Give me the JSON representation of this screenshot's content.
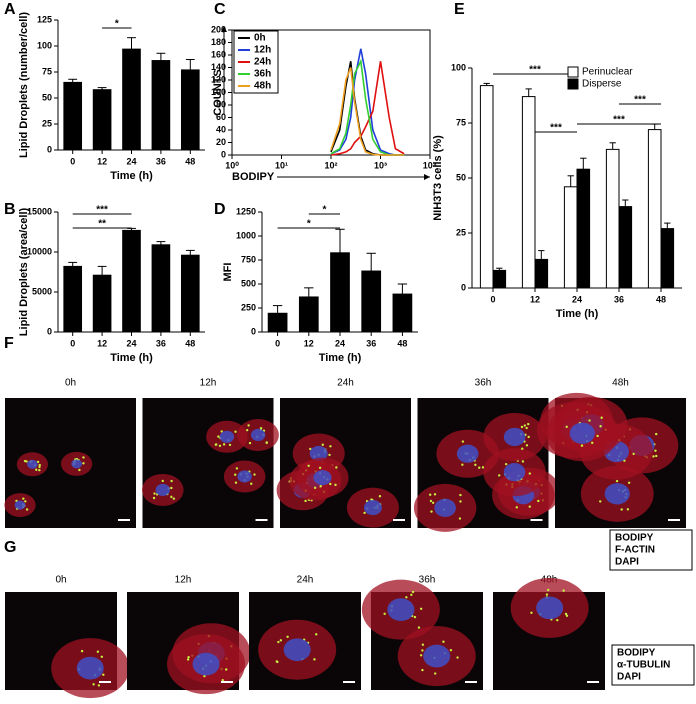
{
  "chart_data": [
    {
      "type": "bar",
      "panel": "A",
      "ylabel": "Lipid Droplets (number/cell)",
      "xlabel": "Time (h)",
      "categories": [
        "0",
        "12",
        "24",
        "36",
        "48"
      ],
      "values": [
        65,
        58,
        97,
        86,
        77
      ],
      "errors": [
        3,
        2,
        11,
        7,
        10
      ],
      "color": "#000000",
      "ylim": [
        0,
        125
      ],
      "yticks": [
        0,
        25,
        50,
        75,
        100,
        125
      ],
      "annotations": [
        "*"
      ]
    },
    {
      "type": "bar",
      "panel": "B",
      "ylabel": "Lipid Droplets (area/cell)",
      "xlabel": "Time (h)",
      "categories": [
        "0",
        "12",
        "24",
        "36",
        "48"
      ],
      "values": [
        8200,
        7100,
        12700,
        10900,
        9600
      ],
      "errors": [
        500,
        1100,
        250,
        400,
        600
      ],
      "color": "#000000",
      "ylim": [
        0,
        15000
      ],
      "yticks": [
        0,
        5000,
        10000,
        15000
      ],
      "annotations": [
        "***",
        "**"
      ]
    },
    {
      "type": "line",
      "panel": "C",
      "ylabel": "COUNTS",
      "xlabel": "BODIPY",
      "log_x": true,
      "x": [
        100,
        150,
        200,
        250,
        300,
        400,
        500,
        700,
        1000,
        1500,
        2000,
        3000
      ],
      "series": [
        {
          "name": "0h",
          "color": "#000000",
          "values": [
            5,
            40,
            110,
            150,
            90,
            30,
            8,
            2,
            0,
            0,
            0,
            0
          ]
        },
        {
          "name": "12h",
          "color": "#1f3fd8",
          "values": [
            2,
            8,
            25,
            60,
            120,
            170,
            130,
            40,
            8,
            2,
            0,
            0
          ]
        },
        {
          "name": "24h",
          "color": "#e01010",
          "values": [
            0,
            2,
            5,
            10,
            20,
            30,
            45,
            70,
            150,
            60,
            10,
            2
          ]
        },
        {
          "name": "36h",
          "color": "#30d030",
          "values": [
            2,
            10,
            35,
            80,
            130,
            150,
            90,
            25,
            5,
            0,
            0,
            0
          ]
        },
        {
          "name": "48h",
          "color": "#f0a020",
          "values": [
            8,
            50,
            120,
            140,
            85,
            25,
            5,
            1,
            0,
            0,
            0,
            0
          ]
        }
      ],
      "xlim": [
        1,
        10000
      ],
      "xticks": [
        {
          "value": 1,
          "label": "10⁰"
        },
        {
          "value": 10,
          "label": "10¹"
        },
        {
          "value": 100,
          "label": "10²"
        },
        {
          "value": 1000,
          "label": "10³"
        },
        {
          "value": 10000,
          "label": "10⁴"
        }
      ],
      "ylim": [
        0,
        200
      ],
      "yticks": [
        0,
        20,
        40,
        60,
        80,
        100,
        120,
        140,
        160,
        180,
        200
      ]
    },
    {
      "type": "bar",
      "panel": "D",
      "ylabel": "MFI",
      "xlabel": "Time (h)",
      "categories": [
        "0",
        "12",
        "24",
        "36",
        "48"
      ],
      "values": [
        195,
        365,
        825,
        635,
        395
      ],
      "errors": [
        80,
        95,
        245,
        185,
        105
      ],
      "color": "#000000",
      "ylim": [
        0,
        1250
      ],
      "yticks": [
        0,
        250,
        500,
        750,
        1000,
        1250
      ],
      "annotations": [
        "*",
        "*"
      ]
    },
    {
      "type": "bar",
      "panel": "E",
      "ylabel": "NIH3T3 cells (%)",
      "xlabel": "Time (h)",
      "categories": [
        "0",
        "12",
        "24",
        "36",
        "48"
      ],
      "series": [
        {
          "name": "Perinuclear",
          "color": "#ffffff",
          "values": [
            92,
            87,
            46,
            63,
            72
          ],
          "errors": [
            1,
            3.5,
            5,
            3,
            2.5
          ]
        },
        {
          "name": "Disperse",
          "color": "#000000",
          "values": [
            8,
            13,
            54,
            37,
            27
          ],
          "errors": [
            1,
            4,
            5,
            3,
            2.5
          ]
        }
      ],
      "ylim": [
        0,
        100
      ],
      "yticks": [
        0,
        25,
        50,
        75,
        100
      ],
      "annotations": [
        "***",
        "***",
        "***",
        "***"
      ]
    }
  ],
  "images": [
    {
      "panel": "F",
      "times": [
        "0h",
        "12h",
        "24h",
        "36h",
        "48h"
      ],
      "legend": [
        "BODIPY",
        "F-ACTIN",
        "DAPI"
      ]
    },
    {
      "panel": "G",
      "times": [
        "0h",
        "12h",
        "24h",
        "36h",
        "48h"
      ],
      "legend": [
        "BODIPY",
        "α-TUBULIN",
        "DAPI"
      ]
    }
  ]
}
